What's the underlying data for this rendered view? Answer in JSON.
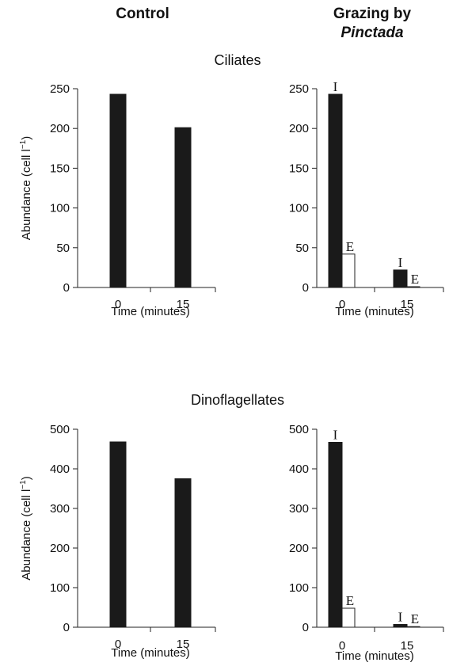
{
  "headers": {
    "control": "Control",
    "grazing_line1": "Grazing by",
    "grazing_line2": "Pinctada"
  },
  "rows": {
    "ciliates": "Ciliates",
    "dinoflagellates": "Dinoflagellates"
  },
  "colors": {
    "filled_bar": "#1a1a1a",
    "open_bar": "#ffffff",
    "axis": "#222222"
  },
  "chart_data": [
    {
      "type": "bar",
      "title": "",
      "row": "Ciliates",
      "column": "Control",
      "xlabel": "Time (minutes)",
      "ylabel": "Abundance (cell l⁻¹)",
      "ylim": [
        0,
        250
      ],
      "yticks": [
        0,
        50,
        100,
        150,
        200,
        250
      ],
      "categories": [
        "0",
        "15"
      ],
      "series": [
        {
          "name": "",
          "fill": "filled",
          "values": [
            243,
            201
          ]
        }
      ]
    },
    {
      "type": "bar",
      "title": "",
      "row": "Ciliates",
      "column": "Grazing by Pinctada",
      "xlabel": "Time (minutes)",
      "ylabel": "",
      "ylim": [
        0,
        250
      ],
      "yticks": [
        0,
        50,
        100,
        150,
        200,
        250
      ],
      "categories": [
        "0",
        "15"
      ],
      "series": [
        {
          "name": "I",
          "fill": "filled",
          "values": [
            243,
            22
          ]
        },
        {
          "name": "E",
          "fill": "open",
          "values": [
            42,
            1
          ]
        }
      ]
    },
    {
      "type": "bar",
      "title": "",
      "row": "Dinoflagellates",
      "column": "Control",
      "xlabel": "Time (minutes)",
      "ylabel": "Abundance (cell l⁻¹)",
      "ylim": [
        0,
        500
      ],
      "yticks": [
        0,
        100,
        200,
        300,
        400,
        500
      ],
      "categories": [
        "0",
        "15"
      ],
      "series": [
        {
          "name": "",
          "fill": "filled",
          "values": [
            468,
            375
          ]
        }
      ]
    },
    {
      "type": "bar",
      "title": "",
      "row": "Dinoflagellates",
      "column": "Grazing by Pinctada",
      "xlabel": "Time (minutes)",
      "ylabel": "",
      "ylim": [
        0,
        500
      ],
      "yticks": [
        0,
        100,
        200,
        300,
        400,
        500
      ],
      "categories": [
        "0",
        "15"
      ],
      "series": [
        {
          "name": "I",
          "fill": "filled",
          "values": [
            467,
            7
          ]
        },
        {
          "name": "E",
          "fill": "open",
          "values": [
            48,
            1
          ]
        }
      ]
    }
  ]
}
